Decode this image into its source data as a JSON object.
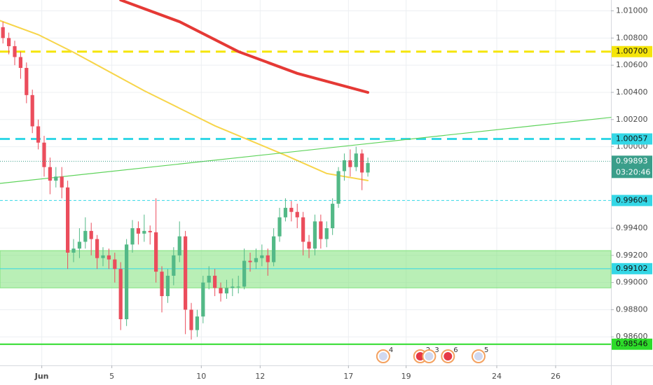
{
  "chart_data": {
    "type": "candlestick",
    "up_color": "#53b987",
    "down_color": "#eb4d5c",
    "xlim": [
      -0.5,
      103.3
    ],
    "ylim": [
      0.9839,
      1.0108
    ],
    "xticks": [
      {
        "value": 6.6,
        "label": "Jun"
      },
      {
        "value": 18.5,
        "label": "5"
      },
      {
        "value": 33.7,
        "label": "10"
      },
      {
        "value": 43.7,
        "label": "12"
      },
      {
        "value": 58.7,
        "label": "17"
      },
      {
        "value": 68.5,
        "label": "19"
      },
      {
        "value": 83.9,
        "label": "24"
      },
      {
        "value": 93.9,
        "label": "26"
      }
    ],
    "yticks": [
      {
        "value": 1.01,
        "label": "1.01000"
      },
      {
        "value": 1.008,
        "label": "1.00800"
      },
      {
        "value": 1.006,
        "label": "1.00600"
      },
      {
        "value": 1.004,
        "label": "1.00400"
      },
      {
        "value": 1.002,
        "label": "1.00200"
      },
      {
        "value": 1.0,
        "label": "1.00000"
      },
      {
        "value": 0.994,
        "label": "0.99400"
      },
      {
        "value": 0.992,
        "label": "0.99200"
      },
      {
        "value": 0.99,
        "label": "0.99000"
      },
      {
        "value": 0.988,
        "label": "0.98800"
      },
      {
        "value": 0.986,
        "label": "0.98600"
      }
    ],
    "grid": true,
    "open": [
      1.0088,
      1.008,
      1.0074,
      1.0066,
      1.0058,
      1.0038,
      1.0015,
      1.0003,
      0.9985,
      0.9975,
      0.9978,
      0.997,
      0.9922,
      0.9925,
      0.993,
      0.9938,
      0.9932,
      0.9918,
      0.992,
      0.9917,
      0.991,
      0.9873,
      0.9928,
      0.994,
      0.9936,
      0.9938,
      0.9937,
      0.9908,
      0.989,
      0.9905,
      0.992,
      0.9934,
      0.988,
      0.9865,
      0.9875,
      0.99,
      0.9905,
      0.9896,
      0.9892,
      0.9896,
      0.9897,
      0.9897,
      0.9916,
      0.9915,
      0.9918,
      0.992,
      0.9915,
      0.9934,
      0.9948,
      0.9955,
      0.9952,
      0.9948,
      0.993,
      0.9925,
      0.9945,
      0.9932,
      0.994,
      0.9958,
      0.9982,
      0.999,
      0.9985,
      0.9995,
      0.9981
    ],
    "high": [
      1.0092,
      1.0084,
      1.0078,
      1.007,
      1.0062,
      1.0042,
      1.002,
      1.0008,
      0.9992,
      0.9985,
      0.9985,
      0.9975,
      0.9932,
      0.994,
      0.9948,
      0.9944,
      0.9935,
      0.9926,
      0.9925,
      0.9922,
      0.9915,
      0.9932,
      0.9946,
      0.9945,
      0.995,
      0.9942,
      0.9962,
      0.9912,
      0.991,
      0.9926,
      0.9945,
      0.9938,
      0.9885,
      0.988,
      0.9905,
      0.9912,
      0.991,
      0.99,
      0.9902,
      0.9903,
      0.9905,
      0.9925,
      0.9922,
      0.9925,
      0.9928,
      0.9925,
      0.994,
      0.9955,
      0.9962,
      0.996,
      0.9958,
      0.9952,
      0.9935,
      0.995,
      0.995,
      0.9945,
      0.9962,
      0.9985,
      0.9995,
      0.9998,
      1.0,
      0.9998,
      0.9992
    ],
    "low": [
      1.0076,
      1.0068,
      1.006,
      1.005,
      1.0032,
      1.001,
      0.9998,
      0.9978,
      0.9965,
      0.997,
      0.9962,
      0.991,
      0.9915,
      0.9918,
      0.9925,
      0.992,
      0.991,
      0.9912,
      0.991,
      0.99,
      0.9865,
      0.9868,
      0.9922,
      0.9928,
      0.993,
      0.9928,
      0.99,
      0.9878,
      0.9885,
      0.9898,
      0.9915,
      0.9862,
      0.9858,
      0.986,
      0.987,
      0.9895,
      0.989,
      0.9886,
      0.9888,
      0.989,
      0.9892,
      0.9895,
      0.9908,
      0.991,
      0.9912,
      0.9905,
      0.9912,
      0.993,
      0.9945,
      0.9945,
      0.994,
      0.992,
      0.9918,
      0.992,
      0.9925,
      0.9926,
      0.9935,
      0.9955,
      0.9975,
      0.9978,
      0.9982,
      0.9968,
      0.9978
    ],
    "close": [
      1.008,
      1.0074,
      1.0066,
      1.0058,
      1.0038,
      1.0015,
      1.0003,
      0.9985,
      0.9975,
      0.9978,
      0.997,
      0.9922,
      0.9925,
      0.993,
      0.9938,
      0.9932,
      0.9918,
      0.992,
      0.9917,
      0.991,
      0.9873,
      0.9928,
      0.994,
      0.9936,
      0.9938,
      0.9937,
      0.9908,
      0.989,
      0.9905,
      0.992,
      0.9934,
      0.988,
      0.9865,
      0.9875,
      0.99,
      0.9905,
      0.9896,
      0.9892,
      0.9896,
      0.9897,
      0.9897,
      0.9916,
      0.9915,
      0.9918,
      0.992,
      0.9915,
      0.9934,
      0.9948,
      0.9955,
      0.9952,
      0.9948,
      0.993,
      0.9925,
      0.9945,
      0.9932,
      0.994,
      0.9958,
      0.9982,
      0.999,
      0.9985,
      0.9995,
      0.9981,
      0.9988
    ],
    "overlays": [
      {
        "color": "#e53935",
        "width": 4,
        "x": [
          20,
          30,
          40,
          50,
          62
        ],
        "values": [
          1.0108,
          1.0092,
          1.007,
          1.0054,
          1.004
        ]
      },
      {
        "color": "#f7d54a",
        "width": 2,
        "x": [
          -0.5,
          6,
          12,
          24,
          36,
          48,
          55,
          62
        ],
        "values": [
          1.00928,
          1.00825,
          1.00695,
          1.00412,
          1.00154,
          0.99937,
          0.99803,
          0.99751
        ]
      },
      {
        "color": "#5ed35b",
        "width": 1.2,
        "x": [
          -0.5,
          103.3
        ],
        "values": [
          0.9973,
          1.00216
        ]
      }
    ],
    "zone": {
      "from": 0.98961,
      "to": 0.99235,
      "color": "#7fe27a"
    },
    "levels": [
      {
        "value": 1.007,
        "label": "1.00700",
        "color": "#f5e50a",
        "style": "dashed",
        "width": 3
      },
      {
        "value": 1.00057,
        "label": "1.00057",
        "color": "#34d7e6",
        "style": "dashed",
        "width": 3
      },
      {
        "value": 0.99604,
        "label": "0.99604",
        "color": "#34d7e6",
        "style": "thin",
        "width": 1
      },
      {
        "value": 0.99102,
        "label": "0.99102",
        "color": "#34d7e6",
        "style": "solid",
        "width": 1
      },
      {
        "value": 0.98546,
        "label": "0.98546",
        "color": "#2ddc2a",
        "style": "solid",
        "width": 2
      }
    ],
    "last": {
      "value": 0.99893,
      "label": "0.99893",
      "countdown": "03:20:46",
      "color": "#3a9e8a"
    },
    "events": [
      {
        "x": 64.6,
        "label": "4"
      },
      {
        "x": 70.9,
        "label": "2"
      },
      {
        "x": 72.4,
        "label": "3"
      },
      {
        "x": 75.6,
        "label": "6"
      },
      {
        "x": 80.8,
        "label": "5"
      }
    ]
  }
}
